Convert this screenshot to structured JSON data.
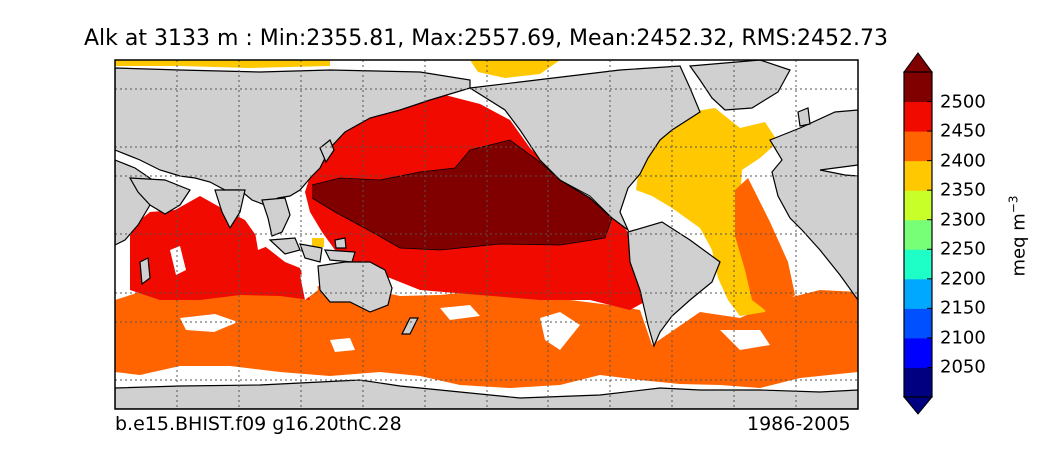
{
  "title": "Alk at 3133 m : Min:2355.81, Max:2557.69, Mean:2452.32, RMS:2452.73",
  "run_id": "b.e15.BHIST.f09 g16.20thC.28",
  "period": "1986-2005",
  "colorbar": {
    "units_main": "meq m",
    "units_exp": "−3",
    "extend": "both",
    "levels": [
      2000,
      2050,
      2100,
      2150,
      2200,
      2250,
      2300,
      2350,
      2400,
      2450,
      2500,
      2550
    ],
    "tick_labels": [
      "2050",
      "2100",
      "2150",
      "2200",
      "2250",
      "2300",
      "2350",
      "2400",
      "2450",
      "2500"
    ],
    "colors": [
      "#000080",
      "#0000ff",
      "#0050ff",
      "#00a8ff",
      "#1effc8",
      "#78ff78",
      "#c8ff28",
      "#ffc800",
      "#ff6400",
      "#f00a00",
      "#800000"
    ]
  },
  "map": {
    "projection": "cylindrical",
    "gridlines": "dotted",
    "land_color": "#d0d0d0",
    "missing_color": "#ffffff"
  }
}
